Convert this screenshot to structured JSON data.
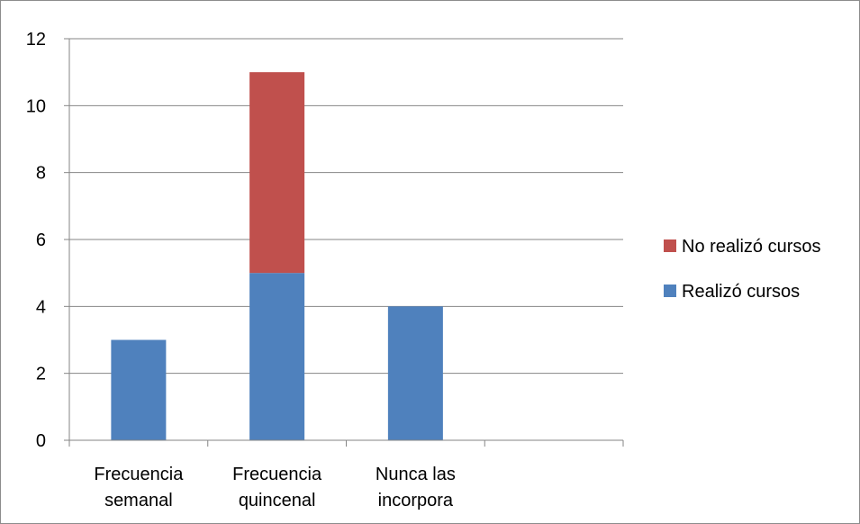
{
  "chart_data": {
    "type": "bar",
    "stacked": true,
    "categories": [
      [
        "Frecuencia",
        "semanal"
      ],
      [
        "Frecuencia",
        "quincenal"
      ],
      [
        "Nunca las",
        "incorpora"
      ],
      [
        ""
      ]
    ],
    "series": [
      {
        "name": "Realizó cursos",
        "color": "#4f81bd",
        "values": [
          3,
          5,
          4,
          0
        ]
      },
      {
        "name": "No realizó cursos",
        "color": "#c0504d",
        "values": [
          0,
          6,
          0,
          0
        ]
      }
    ],
    "ylim": [
      0,
      12
    ],
    "yticks": [
      "0",
      "2",
      "4",
      "6",
      "8",
      "10",
      "12"
    ],
    "grid": true,
    "legend": {
      "placement": "right",
      "order": [
        "No realizó cursos",
        "Realizó cursos"
      ]
    }
  }
}
